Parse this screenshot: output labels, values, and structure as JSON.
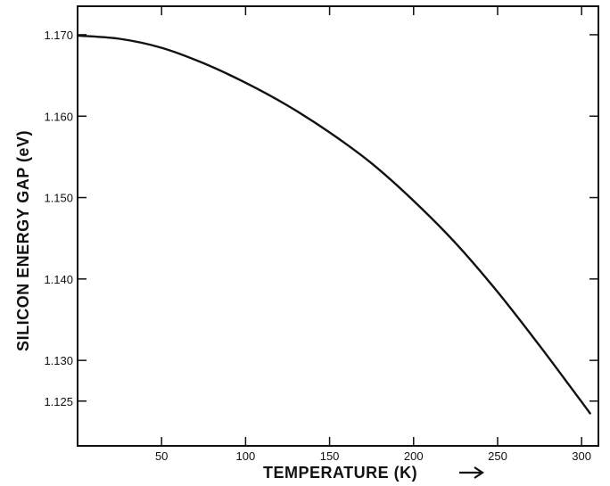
{
  "chart_data": {
    "type": "line",
    "title": "",
    "xlabel": "TEMPERATURE (K)",
    "ylabel": "SILICON ENERGY GAP (eV)",
    "xlim": [
      0,
      310
    ],
    "ylim": [
      1.1195,
      1.1735
    ],
    "x_ticks": [
      50,
      100,
      150,
      200,
      250,
      300
    ],
    "x_tick_labels": [
      "50",
      "100",
      "150",
      "200",
      "250",
      "300"
    ],
    "y_ticks": [
      1.125,
      1.13,
      1.14,
      1.15,
      1.16,
      1.17
    ],
    "y_tick_labels": [
      "1.125",
      "1.130",
      "1.140",
      "1.150",
      "1.160",
      "1.170"
    ],
    "grid": false,
    "series": [
      {
        "x": [
          0,
          25,
          50,
          75,
          100,
          125,
          150,
          175,
          200,
          225,
          250,
          275,
          300,
          305
        ],
        "y": [
          1.1699,
          1.1695,
          1.1684,
          1.1665,
          1.1641,
          1.1613,
          1.158,
          1.1542,
          1.1496,
          1.1444,
          1.1384,
          1.1318,
          1.1249,
          1.1235
        ]
      }
    ]
  }
}
